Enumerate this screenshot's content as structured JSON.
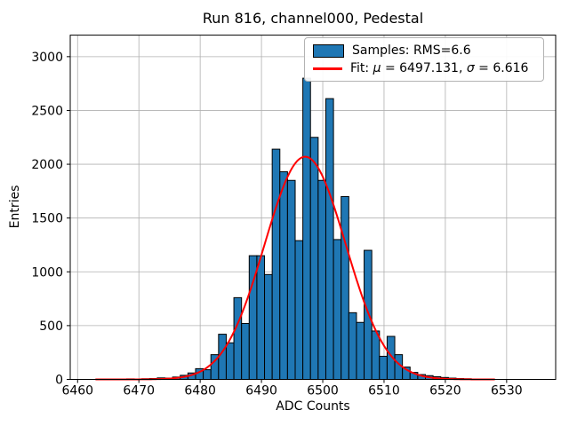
{
  "figure": {
    "title": "Run 816, channel000, Pedestal"
  },
  "axes": {
    "xlabel": "ADC Counts",
    "ylabel": "Entries"
  },
  "legend": {
    "samples_label": "Samples: RMS=6.6",
    "fit_prefix": "Fit: ",
    "fit_mu_symbol": "μ",
    "fit_mu_value": " = 6497.131, ",
    "fit_sigma_symbol": "σ",
    "fit_sigma_value": " = 6.616"
  },
  "colors": {
    "bar_fill": "#1f77b4",
    "bar_edge": "#000000",
    "fit_line": "#ff0000",
    "grid": "#b0b0b0",
    "spine": "#000000",
    "background": "#ffffff"
  },
  "chart_data": {
    "type": "bar",
    "subtype": "histogram_with_gaussian_fit",
    "title": "Run 816, channel000, Pedestal",
    "xlabel": "ADC Counts",
    "ylabel": "Entries",
    "x_ticks": [
      6460,
      6470,
      6480,
      6490,
      6500,
      6510,
      6520,
      6530
    ],
    "y_ticks": [
      0,
      500,
      1000,
      1500,
      2000,
      2500,
      3000
    ],
    "xlim": [
      6458.8,
      6538.0
    ],
    "ylim": [
      0,
      3200
    ],
    "grid": true,
    "legend_position": "upper right",
    "bin_start": 6463.0,
    "bin_width": 1.25,
    "bin_counts": [
      2,
      2,
      2,
      3,
      5,
      4,
      6,
      8,
      14,
      12,
      22,
      38,
      60,
      100,
      90,
      230,
      420,
      340,
      760,
      520,
      1150,
      1150,
      975,
      2140,
      1930,
      1850,
      1290,
      2800,
      2250,
      1850,
      2610,
      1300,
      1700,
      620,
      530,
      1200,
      450,
      215,
      400,
      230,
      115,
      65,
      45,
      35,
      25,
      18,
      12,
      8,
      6,
      4,
      3,
      2
    ],
    "series": [
      {
        "name": "Samples: RMS=6.6",
        "rms": 6.6
      },
      {
        "name": "Fit: μ = 6497.131, σ = 6.616",
        "fit": {
          "mu": 6497.131,
          "sigma": 6.616,
          "amplitude": 2070,
          "x_range": [
            6463,
            6528
          ]
        }
      }
    ]
  }
}
